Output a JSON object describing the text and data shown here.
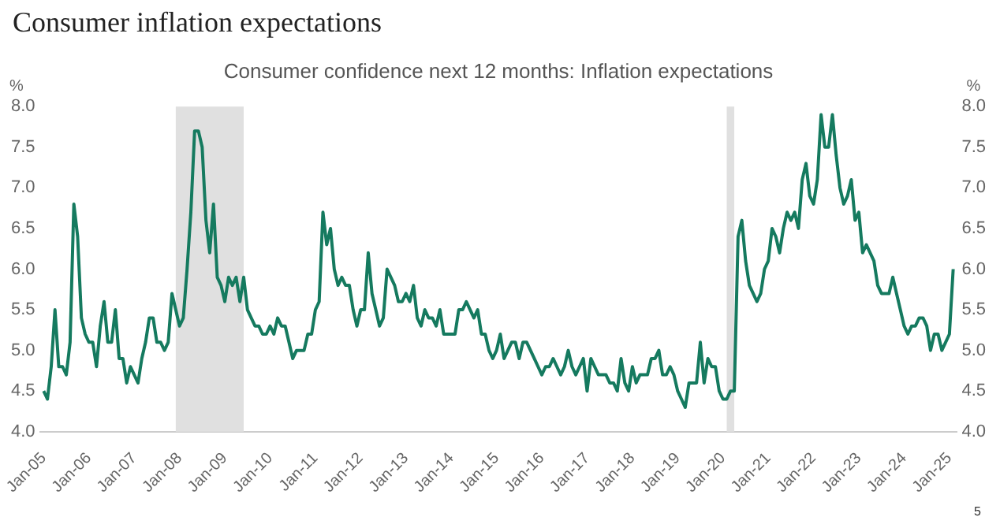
{
  "chart_data": {
    "type": "line",
    "title": "Consumer confidence next 12 months: Inflation expectations",
    "subtitle": "Consumer inflation expectations",
    "ylabel": "%",
    "y2label": "%",
    "x": [
      "2005-01",
      "2005-02",
      "2005-03",
      "2005-04",
      "2005-05",
      "2005-06",
      "2005-07",
      "2005-08",
      "2005-09",
      "2005-10",
      "2005-11",
      "2005-12",
      "2006-01",
      "2006-02",
      "2006-03",
      "2006-04",
      "2006-05",
      "2006-06",
      "2006-07",
      "2006-08",
      "2006-09",
      "2006-10",
      "2006-11",
      "2006-12",
      "2007-01",
      "2007-02",
      "2007-03",
      "2007-04",
      "2007-05",
      "2007-06",
      "2007-07",
      "2007-08",
      "2007-09",
      "2007-10",
      "2007-11",
      "2007-12",
      "2008-01",
      "2008-02",
      "2008-03",
      "2008-04",
      "2008-05",
      "2008-06",
      "2008-07",
      "2008-08",
      "2008-09",
      "2008-10",
      "2008-11",
      "2008-12",
      "2009-01",
      "2009-02",
      "2009-03",
      "2009-04",
      "2009-05",
      "2009-06",
      "2009-07",
      "2009-08",
      "2009-09",
      "2009-10",
      "2009-11",
      "2009-12",
      "2010-01",
      "2010-02",
      "2010-03",
      "2010-04",
      "2010-05",
      "2010-06",
      "2010-07",
      "2010-08",
      "2010-09",
      "2010-10",
      "2010-11",
      "2010-12",
      "2011-01",
      "2011-02",
      "2011-03",
      "2011-04",
      "2011-05",
      "2011-06",
      "2011-07",
      "2011-08",
      "2011-09",
      "2011-10",
      "2011-11",
      "2011-12",
      "2012-01",
      "2012-02",
      "2012-03",
      "2012-04",
      "2012-05",
      "2012-06",
      "2012-07",
      "2012-08",
      "2012-09",
      "2012-10",
      "2012-11",
      "2012-12",
      "2013-01",
      "2013-02",
      "2013-03",
      "2013-04",
      "2013-05",
      "2013-06",
      "2013-07",
      "2013-08",
      "2013-09",
      "2013-10",
      "2013-11",
      "2013-12",
      "2014-01",
      "2014-02",
      "2014-03",
      "2014-04",
      "2014-05",
      "2014-06",
      "2014-07",
      "2014-08",
      "2014-09",
      "2014-10",
      "2014-11",
      "2014-12",
      "2015-01",
      "2015-02",
      "2015-03",
      "2015-04",
      "2015-05",
      "2015-06",
      "2015-07",
      "2015-08",
      "2015-09",
      "2015-10",
      "2015-11",
      "2015-12",
      "2016-01",
      "2016-02",
      "2016-03",
      "2016-04",
      "2016-05",
      "2016-06",
      "2016-07",
      "2016-08",
      "2016-09",
      "2016-10",
      "2016-11",
      "2016-12",
      "2017-01",
      "2017-02",
      "2017-03",
      "2017-04",
      "2017-05",
      "2017-06",
      "2017-07",
      "2017-08",
      "2017-09",
      "2017-10",
      "2017-11",
      "2017-12",
      "2018-01",
      "2018-02",
      "2018-03",
      "2018-04",
      "2018-05",
      "2018-06",
      "2018-07",
      "2018-08",
      "2018-09",
      "2018-10",
      "2018-11",
      "2018-12",
      "2019-01",
      "2019-02",
      "2019-03",
      "2019-04",
      "2019-05",
      "2019-06",
      "2019-07",
      "2019-08",
      "2019-09",
      "2019-10",
      "2019-11",
      "2019-12",
      "2020-01",
      "2020-02",
      "2020-03",
      "2020-04",
      "2020-05",
      "2020-06",
      "2020-07",
      "2020-08",
      "2020-09",
      "2020-10",
      "2020-11",
      "2020-12",
      "2021-01",
      "2021-02",
      "2021-03",
      "2021-04",
      "2021-05",
      "2021-06",
      "2021-07",
      "2021-08",
      "2021-09",
      "2021-10",
      "2021-11",
      "2021-12",
      "2022-01",
      "2022-02",
      "2022-03",
      "2022-04",
      "2022-05",
      "2022-06",
      "2022-07",
      "2022-08",
      "2022-09",
      "2022-10",
      "2022-11",
      "2022-12",
      "2023-01",
      "2023-02",
      "2023-03",
      "2023-04",
      "2023-05",
      "2023-06",
      "2023-07",
      "2023-08",
      "2023-09",
      "2023-10",
      "2023-11",
      "2023-12",
      "2024-01",
      "2024-02",
      "2024-03",
      "2024-04",
      "2024-05",
      "2024-06",
      "2024-07",
      "2024-08",
      "2024-09",
      "2024-10",
      "2024-11",
      "2024-12",
      "2025-01",
      "2025-02"
    ],
    "series": [
      {
        "color": "#157a5f",
        "values": [
          4.5,
          4.4,
          4.8,
          5.5,
          4.8,
          4.8,
          4.7,
          5.1,
          6.8,
          6.4,
          5.4,
          5.2,
          5.1,
          5.1,
          4.8,
          5.3,
          5.6,
          5.1,
          5.1,
          5.5,
          4.9,
          4.9,
          4.6,
          4.8,
          4.7,
          4.6,
          4.9,
          5.1,
          5.4,
          5.4,
          5.1,
          5.1,
          5.0,
          5.1,
          5.7,
          5.5,
          5.3,
          5.4,
          6.0,
          6.7,
          7.7,
          7.7,
          7.5,
          6.6,
          6.2,
          6.8,
          5.9,
          5.8,
          5.6,
          5.9,
          5.8,
          5.9,
          5.6,
          5.9,
          5.5,
          5.4,
          5.3,
          5.3,
          5.2,
          5.2,
          5.3,
          5.2,
          5.4,
          5.3,
          5.3,
          5.1,
          4.9,
          5.0,
          5.0,
          5.0,
          5.2,
          5.2,
          5.5,
          5.6,
          6.7,
          6.3,
          6.5,
          6.0,
          5.8,
          5.9,
          5.8,
          5.8,
          5.5,
          5.3,
          5.5,
          5.5,
          6.2,
          5.7,
          5.5,
          5.3,
          5.4,
          6.0,
          5.9,
          5.8,
          5.6,
          5.6,
          5.7,
          5.6,
          5.8,
          5.4,
          5.3,
          5.5,
          5.4,
          5.4,
          5.3,
          5.5,
          5.2,
          5.2,
          5.2,
          5.2,
          5.5,
          5.5,
          5.6,
          5.5,
          5.4,
          5.5,
          5.2,
          5.2,
          5.0,
          4.9,
          5.0,
          5.2,
          4.9,
          5.0,
          5.1,
          5.1,
          4.9,
          5.1,
          5.1,
          5.0,
          4.9,
          4.8,
          4.7,
          4.8,
          4.8,
          4.9,
          4.8,
          4.7,
          4.8,
          5.0,
          4.8,
          4.7,
          4.8,
          4.9,
          4.5,
          4.9,
          4.8,
          4.7,
          4.7,
          4.7,
          4.6,
          4.6,
          4.5,
          4.9,
          4.6,
          4.5,
          4.8,
          4.6,
          4.7,
          4.7,
          4.7,
          4.9,
          4.9,
          5.0,
          4.7,
          4.7,
          4.8,
          4.7,
          4.5,
          4.4,
          4.3,
          4.6,
          4.6,
          4.6,
          5.1,
          4.6,
          4.9,
          4.8,
          4.8,
          4.5,
          4.4,
          4.4,
          4.5,
          4.5,
          6.4,
          6.6,
          6.1,
          5.8,
          5.7,
          5.6,
          5.7,
          6.0,
          6.1,
          6.5,
          6.4,
          6.2,
          6.5,
          6.7,
          6.6,
          6.7,
          6.5,
          7.1,
          7.3,
          6.9,
          6.8,
          7.1,
          7.9,
          7.5,
          7.5,
          7.9,
          7.4,
          7.0,
          6.8,
          6.9,
          7.1,
          6.6,
          6.7,
          6.2,
          6.3,
          6.2,
          6.1,
          5.8,
          5.7,
          5.7,
          5.7,
          5.9,
          5.7,
          5.5,
          5.3,
          5.2,
          5.3,
          5.3,
          5.4,
          5.4,
          5.3,
          5.0,
          5.2,
          5.2,
          5.0,
          5.1,
          5.2,
          6.0
        ]
      }
    ],
    "xlim": [
      "2004-12",
      "2025-03"
    ],
    "xticks": [
      {
        "value": "2005-01",
        "label": "Jan-05"
      },
      {
        "value": "2006-01",
        "label": "Jan-06"
      },
      {
        "value": "2007-01",
        "label": "Jan-07"
      },
      {
        "value": "2008-01",
        "label": "Jan-08"
      },
      {
        "value": "2009-01",
        "label": "Jan-09"
      },
      {
        "value": "2010-01",
        "label": "Jan-10"
      },
      {
        "value": "2011-01",
        "label": "Jan-11"
      },
      {
        "value": "2012-01",
        "label": "Jan-12"
      },
      {
        "value": "2013-01",
        "label": "Jan-13"
      },
      {
        "value": "2014-01",
        "label": "Jan-14"
      },
      {
        "value": "2015-01",
        "label": "Jan-15"
      },
      {
        "value": "2016-01",
        "label": "Jan-16"
      },
      {
        "value": "2017-01",
        "label": "Jan-17"
      },
      {
        "value": "2018-01",
        "label": "Jan-18"
      },
      {
        "value": "2019-01",
        "label": "Jan-19"
      },
      {
        "value": "2020-01",
        "label": "Jan-20"
      },
      {
        "value": "2021-01",
        "label": "Jan-21"
      },
      {
        "value": "2022-01",
        "label": "Jan-22"
      },
      {
        "value": "2023-01",
        "label": "Jan-23"
      },
      {
        "value": "2024-01",
        "label": "Jan-24"
      },
      {
        "value": "2025-01",
        "label": "Jan-25"
      }
    ],
    "ylim": [
      4.0,
      8.0
    ],
    "yticks": [
      {
        "value": 4.0,
        "label": "4.0"
      },
      {
        "value": 4.5,
        "label": "4.5"
      },
      {
        "value": 5.0,
        "label": "5.0"
      },
      {
        "value": 5.5,
        "label": "5.5"
      },
      {
        "value": 6.0,
        "label": "6.0"
      },
      {
        "value": 6.5,
        "label": "6.5"
      },
      {
        "value": 7.0,
        "label": "7.0"
      },
      {
        "value": 7.5,
        "label": "7.5"
      },
      {
        "value": 8.0,
        "label": "8.0"
      }
    ],
    "y2lim": [
      4.0,
      8.0
    ],
    "y2ticks": [
      {
        "value": 4.0,
        "label": "4.0"
      },
      {
        "value": 4.5,
        "label": "4.5"
      },
      {
        "value": 5.0,
        "label": "5.0"
      },
      {
        "value": 5.5,
        "label": "5.5"
      },
      {
        "value": 6.0,
        "label": "6.0"
      },
      {
        "value": 6.5,
        "label": "6.5"
      },
      {
        "value": 7.0,
        "label": "7.0"
      },
      {
        "value": 7.5,
        "label": "7.5"
      },
      {
        "value": 8.0,
        "label": "8.0"
      }
    ],
    "bands": [
      {
        "axis": "x",
        "from": "2007-12",
        "to": "2009-06",
        "color": "#e0e0e0"
      },
      {
        "axis": "x",
        "from": "2020-02",
        "to": "2020-04",
        "color": "#e0e0e0"
      }
    ],
    "annotations": [
      "5"
    ],
    "grid": false,
    "legend": false,
    "marker": "none",
    "line_style": "solid"
  }
}
